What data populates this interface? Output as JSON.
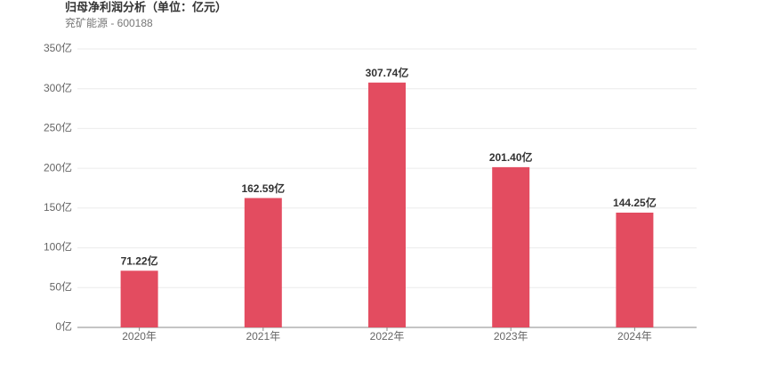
{
  "chart_data": {
    "type": "bar",
    "title": "归母净利润分析（单位：亿元）",
    "subtitle": "兖矿能源 - 600188",
    "categories": [
      "2020年",
      "2021年",
      "2022年",
      "2023年",
      "2024年"
    ],
    "values": [
      71.22,
      162.59,
      307.74,
      201.4,
      144.25
    ],
    "value_labels": [
      "71.22亿",
      "162.59亿",
      "307.74亿",
      "201.40亿",
      "144.25亿"
    ],
    "color": "#e34c60",
    "ylim": [
      0,
      350
    ],
    "yticks": [
      {
        "value": 0,
        "label": "0亿"
      },
      {
        "value": 50,
        "label": "50亿"
      },
      {
        "value": 100,
        "label": "100亿"
      },
      {
        "value": 150,
        "label": "150亿"
      },
      {
        "value": 200,
        "label": "200亿"
      },
      {
        "value": 250,
        "label": "250亿"
      },
      {
        "value": 300,
        "label": "300亿"
      },
      {
        "value": 350,
        "label": "350亿"
      }
    ],
    "grid": true
  }
}
